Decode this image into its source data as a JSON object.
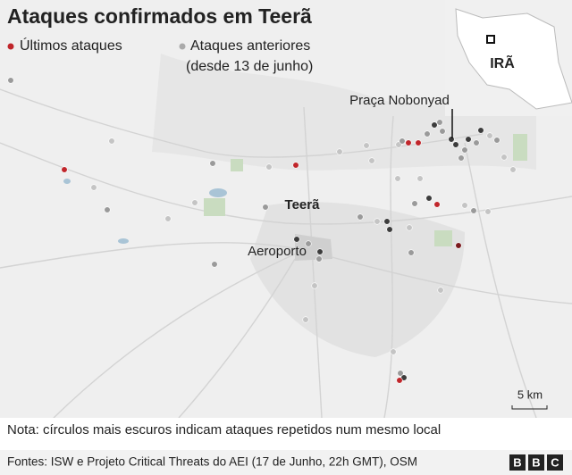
{
  "title": "Ataques confirmados em Teerã",
  "legend": {
    "recent": "Últimos ataques",
    "earlier": "Ataques anteriores",
    "earlier_note": "(desde 13 de junho)"
  },
  "inset": {
    "label": "IRÃ"
  },
  "places": {
    "square": "Praça Nobonyad",
    "city": "Teerã",
    "airport": "Aeroporto"
  },
  "scale": "5 km",
  "note": "Nota: círculos mais escuros indicam ataques repetidos num mesmo local",
  "source": "Fontes: ISW e Projeto Critical Threats do AEI (17 de Junho, 22h GMT), OSM",
  "logo": [
    "B",
    "B",
    "C"
  ]
}
